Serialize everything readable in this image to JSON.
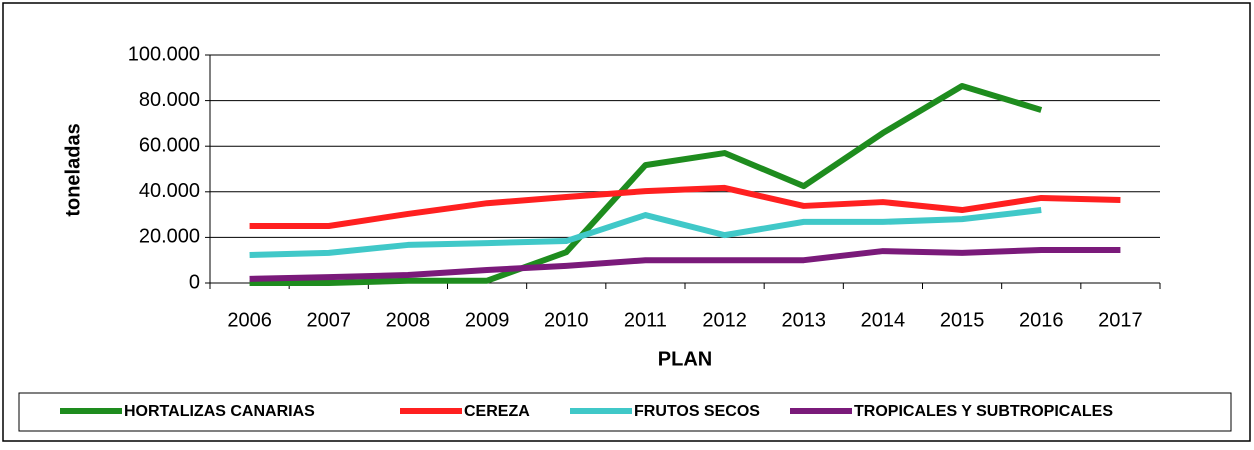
{
  "chart_data": {
    "type": "line",
    "ylabel": "toneladas",
    "xlabel": "PLAN",
    "categories": [
      "2006",
      "2007",
      "2008",
      "2009",
      "2010",
      "2011",
      "2012",
      "2013",
      "2014",
      "2015",
      "2016",
      "2017"
    ],
    "series": [
      {
        "name": "HORTALIZAS CANARIAS",
        "color": "#1e8c1e",
        "values": [
          0,
          0,
          1000,
          1000,
          13500,
          51700,
          57000,
          42500,
          65800,
          86400,
          75900,
          null
        ]
      },
      {
        "name": "CEREZA",
        "color": "#ff2020",
        "values": [
          25000,
          25000,
          30300,
          35000,
          37700,
          40300,
          41700,
          33800,
          35500,
          32000,
          37300,
          36400
        ]
      },
      {
        "name": "FRUTOS SECOS",
        "color": "#40c8c8",
        "values": [
          12300,
          13200,
          16700,
          17500,
          18400,
          29800,
          21000,
          26800,
          26800,
          28000,
          32000,
          null
        ]
      },
      {
        "name": "TROPICALES Y SUBTROPICALES",
        "color": "#7a1a7a",
        "values": [
          1800,
          2600,
          3500,
          5700,
          7500,
          10000,
          10000,
          10000,
          14000,
          13200,
          14500,
          14500
        ]
      }
    ],
    "ylim": [
      0,
      100000
    ],
    "yticks": [
      0,
      {
        "value": 20000,
        "label": "20.000"
      },
      {
        "value": 40000,
        "label": "40.000"
      },
      {
        "value": 60000,
        "label": "60.000"
      },
      {
        "value": 80000,
        "label": "80.000"
      },
      {
        "value": 100000,
        "label": "100.000"
      }
    ],
    "grid": true,
    "legend": "bottom"
  }
}
